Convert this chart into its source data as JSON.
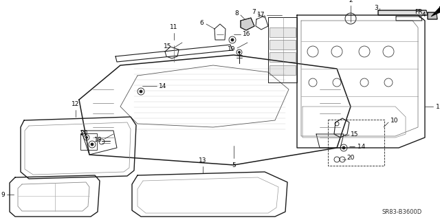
{
  "bg_color": "#ffffff",
  "line_color": "#1a1a1a",
  "diagram_ref": "SR83-B3600D",
  "fr_label": "FR.",
  "figsize": [
    6.4,
    3.2
  ],
  "dpi": 100
}
